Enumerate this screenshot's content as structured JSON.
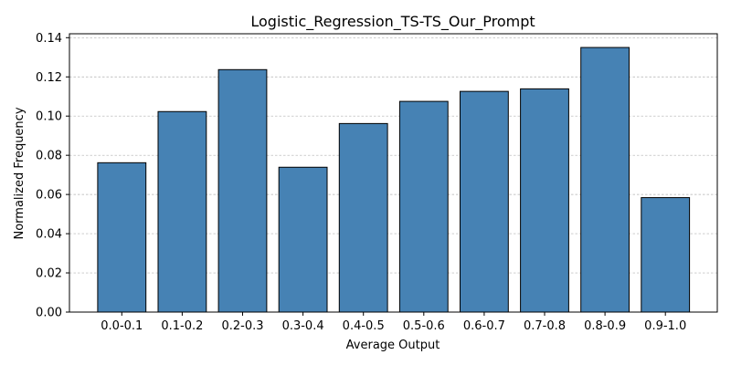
{
  "chart_data": {
    "type": "bar",
    "title": "Logistic_Regression_TS-TS_Our_Prompt",
    "xlabel": "Average Output",
    "ylabel": "Normalized Frequency",
    "categories": [
      "0.0-0.1",
      "0.1-0.2",
      "0.2-0.3",
      "0.3-0.4",
      "0.4-0.5",
      "0.5-0.6",
      "0.6-0.7",
      "0.7-0.8",
      "0.8-0.9",
      "0.9-1.0"
    ],
    "values": [
      0.0762,
      0.1023,
      0.1237,
      0.0739,
      0.0962,
      0.1075,
      0.1126,
      0.1139,
      0.135,
      0.0584
    ],
    "ylim": [
      0,
      0.142
    ],
    "yticks": [
      0.0,
      0.02,
      0.04,
      0.06,
      0.08,
      0.1,
      0.12,
      0.14
    ],
    "ytick_labels": [
      "0.00",
      "0.02",
      "0.04",
      "0.06",
      "0.08",
      "0.10",
      "0.12",
      "0.14"
    ],
    "grid": "y-dashed",
    "bar_color": "#4682b4",
    "edge_color": "#000000"
  }
}
